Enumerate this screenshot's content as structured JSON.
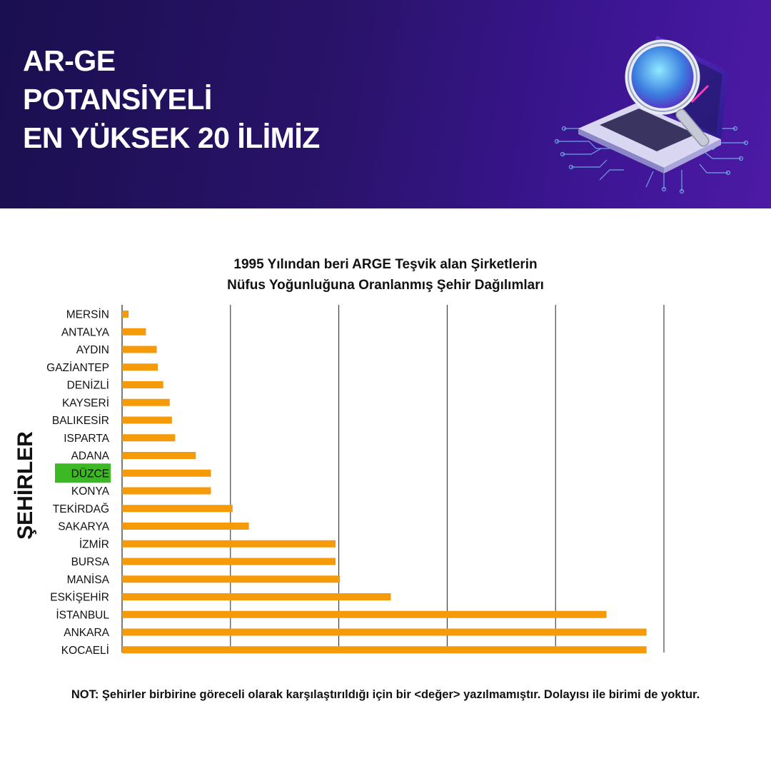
{
  "banner": {
    "title_lines": [
      "AR-GE",
      "POTANSİYELİ",
      "EN YÜKSEK 20 İLİMİZ"
    ]
  },
  "chart_data": {
    "type": "bar",
    "orientation": "horizontal",
    "title_lines": [
      "1995 Yılından beri ARGE Teşvik alan Şirketlerin",
      "Nüfus Yoğunluğuna Oranlanmış Şehir Dağılımları"
    ],
    "ylabel": "ŞEHİRLER",
    "xlabel": "",
    "categories": [
      "MERSİN",
      "ANTALYA",
      "AYDIN",
      "GAZİANTEP",
      "DENİZLİ",
      "KAYSERİ",
      "BALIKESİR",
      "ISPARTA",
      "ADANA",
      "DÜZCE",
      "KONYA",
      "TEKİRDAĞ",
      "SAKARYA",
      "İZMİR",
      "BURSA",
      "MANİSA",
      "ESKİŞEHİR",
      "İSTANBUL",
      "ANKARA",
      "KOCAELİ"
    ],
    "values": [
      0.6,
      2.2,
      3.2,
      3.3,
      3.8,
      4.4,
      4.6,
      4.9,
      6.8,
      8.2,
      8.2,
      10.2,
      11.7,
      19.7,
      19.7,
      20.1,
      24.8,
      44.7,
      48.4,
      48.4
    ],
    "xlim": [
      0,
      50
    ],
    "x_gridlines": [
      10,
      20,
      30,
      40,
      50
    ],
    "x_tick_labels_shown": false,
    "highlight_category": "DÜZCE",
    "bar_color": "#f59b0a",
    "highlight_color": "#3cb824",
    "grid": true
  },
  "note": "NOT: Şehirler birbirine göreceli olarak karşılaştırıldığı için bir <değer> yazılmamıştır. Dolayısı ile birimi de yoktur.",
  "colors": {
    "banner_dark": "#1a0f4f",
    "banner_light": "#4d1aa6"
  }
}
